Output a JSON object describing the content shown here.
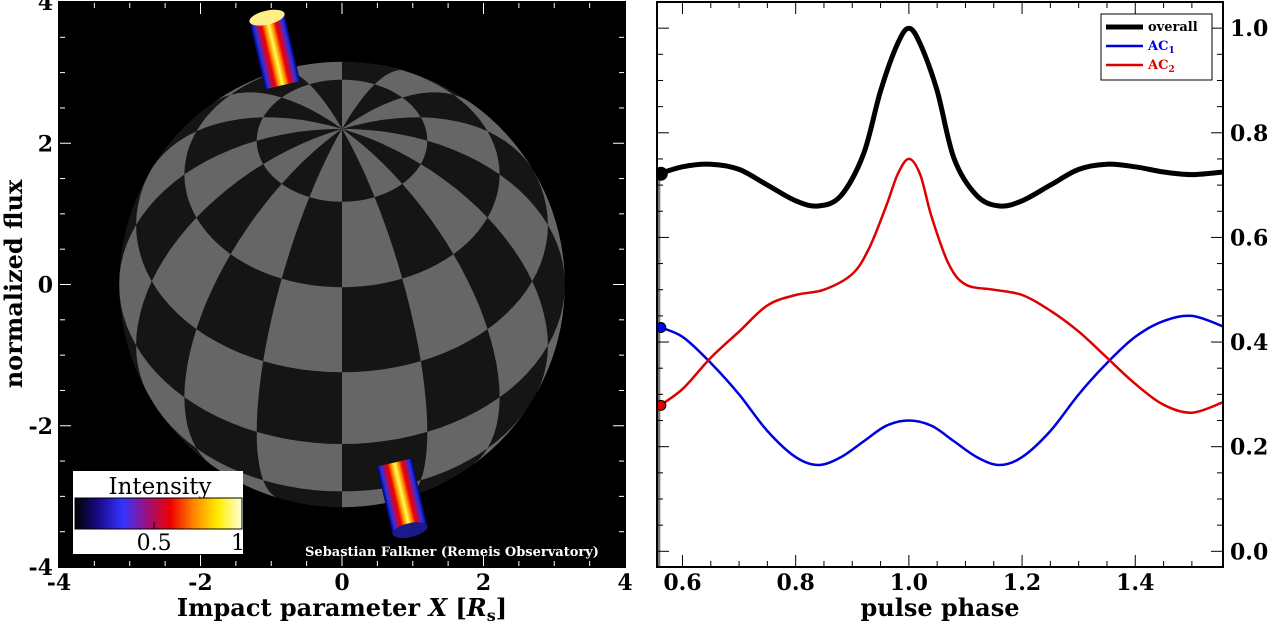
{
  "chart_data": [
    {
      "type": "scatter",
      "panel": "left",
      "xlabel": "Impact parameter",
      "xlabel_symbol": "X",
      "xlabel_unit_open": "[",
      "xlabel_unit_symbol": "R",
      "xlabel_unit_sub": "s",
      "xlabel_unit_close": "]",
      "ylabel": "normalized flux",
      "xlim": [
        -4,
        4
      ],
      "ylim": [
        -4,
        4
      ],
      "x_ticks": [
        "-4",
        "-2",
        "0",
        "2",
        "4"
      ],
      "y_ticks": [
        "4",
        "2",
        "0",
        "-2",
        "-4"
      ],
      "x_tick_values": [
        -4,
        -2,
        0,
        2,
        4
      ],
      "y_tick_values": [
        4,
        2,
        0,
        -2,
        -4
      ],
      "background_color": "#000000",
      "sphere": {
        "radius": 3.15,
        "pole_x": 0.0,
        "pole_y": 2.2,
        "light_color": "#666666",
        "dark_color": "#151515"
      },
      "accretion_columns": [
        {
          "x": -0.95,
          "y": 3.3,
          "length": 1.0
        },
        {
          "x": 0.85,
          "y": -3.0,
          "length": 1.0
        }
      ],
      "colorbar": {
        "title": "Intensity",
        "ticks": [
          "0.5",
          "1"
        ],
        "tick_values": [
          0.5,
          1.0
        ],
        "range": [
          0.05,
          1.0
        ],
        "colormap": [
          "#000000",
          "#1a0a8c",
          "#3333ff",
          "#9a1080",
          "#ee0000",
          "#ff8800",
          "#ffee00",
          "#ffffdd"
        ]
      },
      "credit": "Sebastian Falkner (Remeis Observatory)"
    },
    {
      "type": "line",
      "panel": "right",
      "xlabel": "pulse phase",
      "xlim": [
        0.555,
        1.555
      ],
      "ylim": [
        -0.03,
        1.05
      ],
      "x_ticks": [
        "0.6",
        "0.8",
        "1.0",
        "1.2",
        "1.4"
      ],
      "x_tick_values": [
        0.6,
        0.8,
        1.0,
        1.2,
        1.4
      ],
      "y_ticks": [
        "0.0",
        "0.2",
        "0.4",
        "0.6",
        "0.8",
        "1.0"
      ],
      "y_tick_values": [
        0.0,
        0.2,
        0.4,
        0.6,
        0.8,
        1.0
      ],
      "y_axis_side": "right",
      "current_phase": 0.56,
      "legend": {
        "placement": "top-right",
        "entries": [
          {
            "label": "overall",
            "sub": "",
            "color": "#000000"
          },
          {
            "label": "AC",
            "sub": "1",
            "color": "#0000dd"
          },
          {
            "label": "AC",
            "sub": "2",
            "color": "#dd0000"
          }
        ]
      },
      "series": [
        {
          "name": "overall",
          "color": "#000000",
          "x": [
            0.555,
            0.6,
            0.65,
            0.7,
            0.75,
            0.8,
            0.84,
            0.88,
            0.92,
            0.95,
            0.98,
            1.0,
            1.02,
            1.05,
            1.08,
            1.12,
            1.16,
            1.2,
            1.25,
            1.3,
            1.35,
            1.4,
            1.45,
            1.5,
            1.555
          ],
          "y": [
            0.72,
            0.735,
            0.74,
            0.73,
            0.7,
            0.67,
            0.66,
            0.68,
            0.76,
            0.88,
            0.97,
            1.0,
            0.97,
            0.88,
            0.75,
            0.68,
            0.66,
            0.67,
            0.7,
            0.73,
            0.74,
            0.735,
            0.725,
            0.72,
            0.725
          ]
        },
        {
          "name": "AC1",
          "color": "#0000dd",
          "x": [
            0.555,
            0.6,
            0.65,
            0.7,
            0.75,
            0.8,
            0.84,
            0.88,
            0.92,
            0.96,
            1.0,
            1.04,
            1.08,
            1.12,
            1.16,
            1.2,
            1.25,
            1.3,
            1.35,
            1.4,
            1.45,
            1.5,
            1.555
          ],
          "y": [
            0.43,
            0.41,
            0.36,
            0.3,
            0.23,
            0.18,
            0.165,
            0.18,
            0.21,
            0.24,
            0.25,
            0.24,
            0.21,
            0.18,
            0.165,
            0.18,
            0.23,
            0.3,
            0.36,
            0.41,
            0.44,
            0.45,
            0.43
          ]
        },
        {
          "name": "AC2",
          "color": "#dd0000",
          "x": [
            0.555,
            0.6,
            0.65,
            0.7,
            0.75,
            0.8,
            0.85,
            0.9,
            0.93,
            0.96,
            0.98,
            1.0,
            1.02,
            1.04,
            1.07,
            1.1,
            1.15,
            1.2,
            1.25,
            1.3,
            1.35,
            1.4,
            1.45,
            1.5,
            1.555
          ],
          "y": [
            0.275,
            0.31,
            0.37,
            0.42,
            0.47,
            0.49,
            0.5,
            0.53,
            0.58,
            0.66,
            0.72,
            0.75,
            0.72,
            0.64,
            0.55,
            0.51,
            0.5,
            0.49,
            0.46,
            0.42,
            0.37,
            0.32,
            0.28,
            0.265,
            0.285
          ]
        }
      ]
    }
  ]
}
